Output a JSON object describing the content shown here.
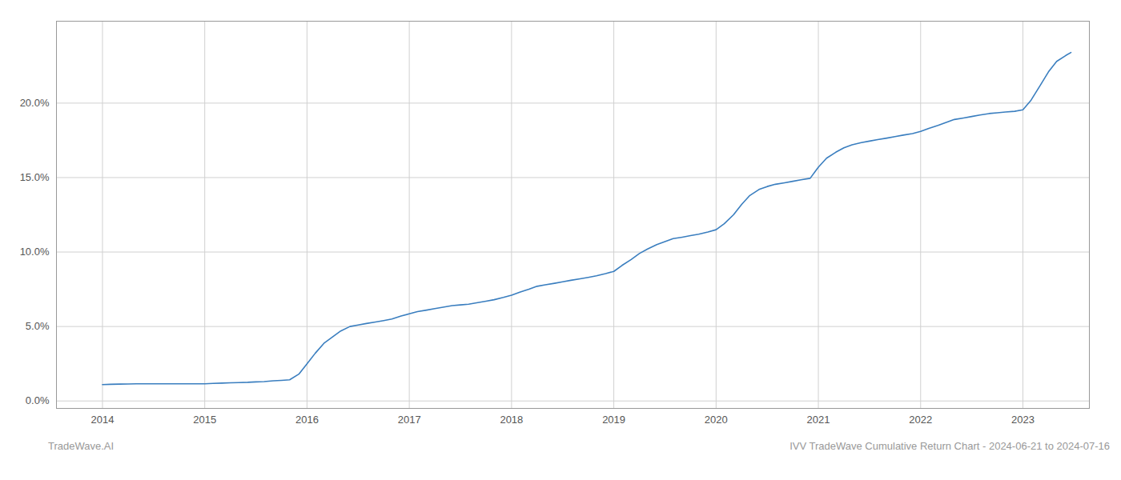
{
  "chart_data": {
    "type": "line",
    "title": "IVV TradeWave Cumulative Return Chart - 2024-06-21 to 2024-07-16",
    "annotations": [
      "TradeWave.AI"
    ],
    "color": "#3a7ebf",
    "grid": true,
    "x": [
      2014.0,
      2014.08,
      2014.17,
      2014.25,
      2014.33,
      2014.42,
      2014.5,
      2014.58,
      2014.67,
      2014.75,
      2014.83,
      2014.92,
      2015.0,
      2015.08,
      2015.17,
      2015.25,
      2015.33,
      2015.42,
      2015.5,
      2015.58,
      2015.67,
      2015.75,
      2015.83,
      2015.92,
      2016.0,
      2016.08,
      2016.17,
      2016.25,
      2016.33,
      2016.42,
      2016.5,
      2016.58,
      2016.67,
      2016.75,
      2016.83,
      2016.92,
      2017.0,
      2017.08,
      2017.17,
      2017.25,
      2017.33,
      2017.42,
      2017.5,
      2017.58,
      2017.67,
      2017.75,
      2017.83,
      2017.92,
      2018.0,
      2018.08,
      2018.17,
      2018.25,
      2018.33,
      2018.42,
      2018.5,
      2018.58,
      2018.67,
      2018.75,
      2018.83,
      2018.92,
      2019.0,
      2019.08,
      2019.17,
      2019.25,
      2019.33,
      2019.42,
      2019.5,
      2019.58,
      2019.67,
      2019.75,
      2019.83,
      2019.92,
      2020.0,
      2020.08,
      2020.17,
      2020.25,
      2020.33,
      2020.42,
      2020.5,
      2020.58,
      2020.67,
      2020.75,
      2020.83,
      2020.92,
      2021.0,
      2021.08,
      2021.17,
      2021.25,
      2021.33,
      2021.42,
      2021.5,
      2021.58,
      2021.67,
      2021.75,
      2021.83,
      2021.92,
      2022.0,
      2022.08,
      2022.17,
      2022.25,
      2022.33,
      2022.42,
      2022.5,
      2022.58,
      2022.67,
      2022.75,
      2022.83,
      2022.92,
      2023.0,
      2023.08,
      2023.17,
      2023.25,
      2023.33,
      2023.42,
      2023.47
    ],
    "values": [
      1.1,
      1.12,
      1.13,
      1.14,
      1.15,
      1.15,
      1.15,
      1.15,
      1.15,
      1.15,
      1.15,
      1.15,
      1.15,
      1.18,
      1.2,
      1.22,
      1.23,
      1.25,
      1.28,
      1.3,
      1.35,
      1.38,
      1.42,
      1.8,
      2.5,
      3.2,
      3.9,
      4.3,
      4.7,
      5.0,
      5.1,
      5.2,
      5.3,
      5.4,
      5.5,
      5.7,
      5.85,
      6.0,
      6.1,
      6.2,
      6.3,
      6.4,
      6.45,
      6.5,
      6.6,
      6.7,
      6.8,
      6.95,
      7.1,
      7.3,
      7.5,
      7.7,
      7.8,
      7.9,
      8.0,
      8.1,
      8.2,
      8.3,
      8.4,
      8.55,
      8.7,
      9.1,
      9.5,
      9.9,
      10.2,
      10.5,
      10.7,
      10.9,
      11.0,
      11.1,
      11.2,
      11.35,
      11.5,
      11.9,
      12.5,
      13.2,
      13.8,
      14.2,
      14.4,
      14.55,
      14.65,
      14.75,
      14.85,
      14.95,
      15.7,
      16.3,
      16.7,
      17.0,
      17.2,
      17.35,
      17.45,
      17.55,
      17.65,
      17.75,
      17.85,
      17.95,
      18.1,
      18.3,
      18.5,
      18.7,
      18.9,
      19.0,
      19.1,
      19.2,
      19.3,
      19.35,
      19.4,
      19.45,
      19.55,
      20.2,
      21.2,
      22.1,
      22.8,
      23.2,
      23.4
    ],
    "xlim": [
      2013.55,
      2023.65
    ],
    "xticks": [
      2014,
      2015,
      2016,
      2017,
      2018,
      2019,
      2020,
      2021,
      2022,
      2023
    ],
    "ylim": [
      -0.5,
      25.5
    ],
    "yticks": [
      {
        "value": 0.0,
        "label": "0.0%"
      },
      {
        "value": 5.0,
        "label": "5.0%"
      },
      {
        "value": 10.0,
        "label": "10.0%"
      },
      {
        "value": 15.0,
        "label": "15.0%"
      },
      {
        "value": 20.0,
        "label": "20.0%"
      }
    ]
  }
}
